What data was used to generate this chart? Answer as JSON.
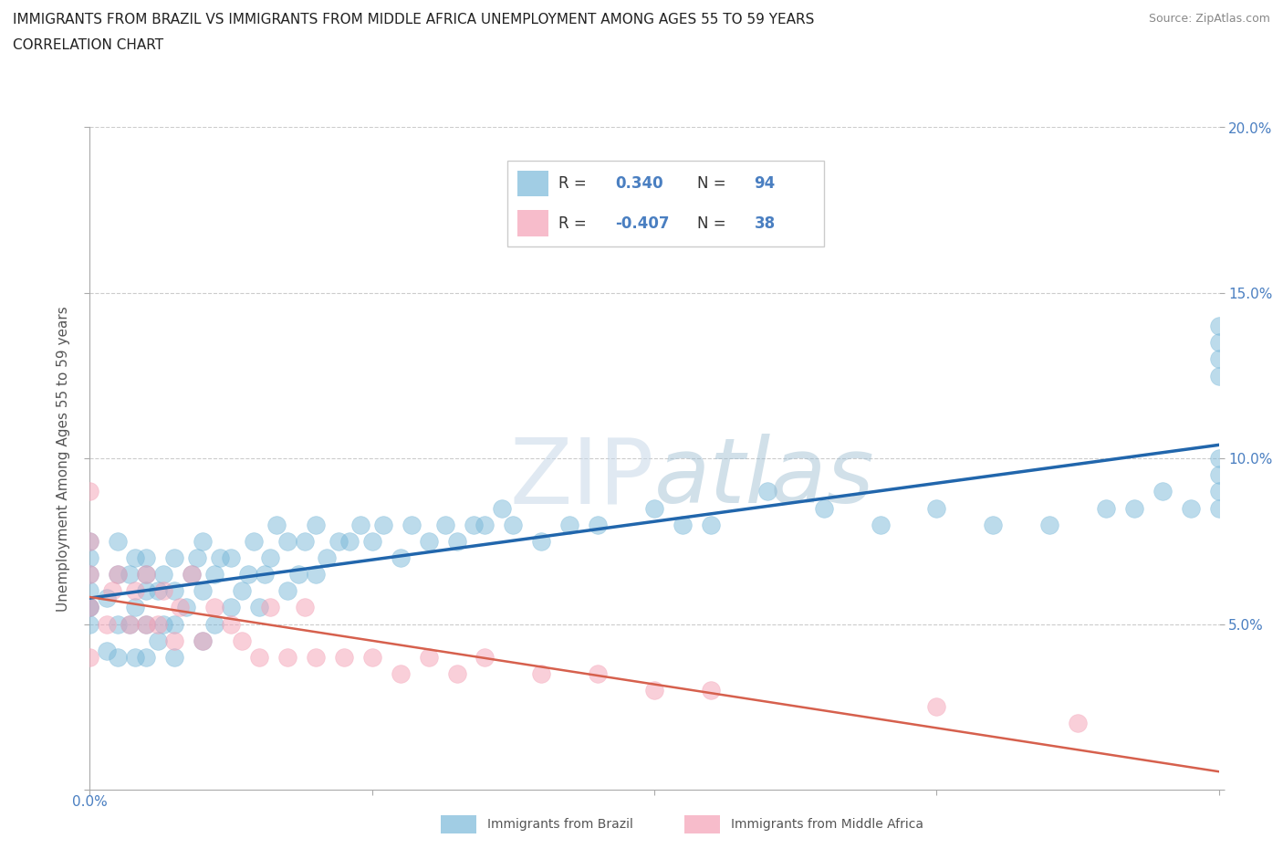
{
  "title_line1": "IMMIGRANTS FROM BRAZIL VS IMMIGRANTS FROM MIDDLE AFRICA UNEMPLOYMENT AMONG AGES 55 TO 59 YEARS",
  "title_line2": "CORRELATION CHART",
  "source_text": "Source: ZipAtlas.com",
  "ylabel": "Unemployment Among Ages 55 to 59 years",
  "xlim": [
    0.0,
    0.2
  ],
  "ylim": [
    0.0,
    0.2
  ],
  "ytick_vals": [
    0.0,
    0.05,
    0.1,
    0.15,
    0.2
  ],
  "ytick_labels_right": [
    "",
    "5.0%",
    "10.0%",
    "15.0%",
    "20.0%"
  ],
  "xtick_label_left": "0.0%",
  "xtick_label_right": "20.0%",
  "brazil_R": 0.34,
  "brazil_N": 94,
  "midafrica_R": -0.407,
  "midafrica_N": 38,
  "brazil_color": "#92c5de",
  "midafrica_color": "#f4a582",
  "brazil_scatter_color": "#7ab8d9",
  "midafrica_scatter_color": "#f4a0b5",
  "brazil_line_color": "#2166ac",
  "midafrica_line_color": "#d6604d",
  "watermark_color": "#d0dce8",
  "legend_label_brazil": "Immigrants from Brazil",
  "legend_label_midafrica": "Immigrants from Middle Africa",
  "brazil_x": [
    0.0,
    0.0,
    0.0,
    0.0,
    0.0,
    0.0,
    0.0,
    0.003,
    0.003,
    0.005,
    0.005,
    0.005,
    0.005,
    0.007,
    0.007,
    0.008,
    0.008,
    0.008,
    0.01,
    0.01,
    0.01,
    0.01,
    0.01,
    0.012,
    0.012,
    0.013,
    0.013,
    0.015,
    0.015,
    0.015,
    0.015,
    0.017,
    0.018,
    0.019,
    0.02,
    0.02,
    0.02,
    0.022,
    0.022,
    0.023,
    0.025,
    0.025,
    0.027,
    0.028,
    0.029,
    0.03,
    0.031,
    0.032,
    0.033,
    0.035,
    0.035,
    0.037,
    0.038,
    0.04,
    0.04,
    0.042,
    0.044,
    0.046,
    0.048,
    0.05,
    0.052,
    0.055,
    0.057,
    0.06,
    0.063,
    0.065,
    0.068,
    0.07,
    0.073,
    0.075,
    0.08,
    0.085,
    0.09,
    0.1,
    0.105,
    0.11,
    0.12,
    0.13,
    0.14,
    0.15,
    0.16,
    0.17,
    0.18,
    0.185,
    0.19,
    0.195,
    0.2,
    0.2,
    0.2,
    0.2,
    0.2,
    0.2,
    0.2,
    0.2
  ],
  "brazil_y": [
    0.05,
    0.055,
    0.055,
    0.06,
    0.065,
    0.07,
    0.075,
    0.042,
    0.058,
    0.04,
    0.05,
    0.065,
    0.075,
    0.05,
    0.065,
    0.04,
    0.055,
    0.07,
    0.04,
    0.05,
    0.06,
    0.065,
    0.07,
    0.045,
    0.06,
    0.05,
    0.065,
    0.04,
    0.05,
    0.06,
    0.07,
    0.055,
    0.065,
    0.07,
    0.045,
    0.06,
    0.075,
    0.05,
    0.065,
    0.07,
    0.055,
    0.07,
    0.06,
    0.065,
    0.075,
    0.055,
    0.065,
    0.07,
    0.08,
    0.06,
    0.075,
    0.065,
    0.075,
    0.065,
    0.08,
    0.07,
    0.075,
    0.075,
    0.08,
    0.075,
    0.08,
    0.07,
    0.08,
    0.075,
    0.08,
    0.075,
    0.08,
    0.08,
    0.085,
    0.08,
    0.075,
    0.08,
    0.08,
    0.085,
    0.08,
    0.08,
    0.09,
    0.085,
    0.08,
    0.085,
    0.08,
    0.08,
    0.085,
    0.085,
    0.09,
    0.085,
    0.085,
    0.09,
    0.095,
    0.1,
    0.125,
    0.13,
    0.135,
    0.14
  ],
  "midafrica_x": [
    0.0,
    0.0,
    0.0,
    0.0,
    0.0,
    0.003,
    0.004,
    0.005,
    0.007,
    0.008,
    0.01,
    0.01,
    0.012,
    0.013,
    0.015,
    0.016,
    0.018,
    0.02,
    0.022,
    0.025,
    0.027,
    0.03,
    0.032,
    0.035,
    0.038,
    0.04,
    0.045,
    0.05,
    0.055,
    0.06,
    0.065,
    0.07,
    0.08,
    0.09,
    0.1,
    0.11,
    0.15,
    0.175
  ],
  "midafrica_y": [
    0.04,
    0.055,
    0.065,
    0.075,
    0.09,
    0.05,
    0.06,
    0.065,
    0.05,
    0.06,
    0.05,
    0.065,
    0.05,
    0.06,
    0.045,
    0.055,
    0.065,
    0.045,
    0.055,
    0.05,
    0.045,
    0.04,
    0.055,
    0.04,
    0.055,
    0.04,
    0.04,
    0.04,
    0.035,
    0.04,
    0.035,
    0.04,
    0.035,
    0.035,
    0.03,
    0.03,
    0.025,
    0.02
  ]
}
